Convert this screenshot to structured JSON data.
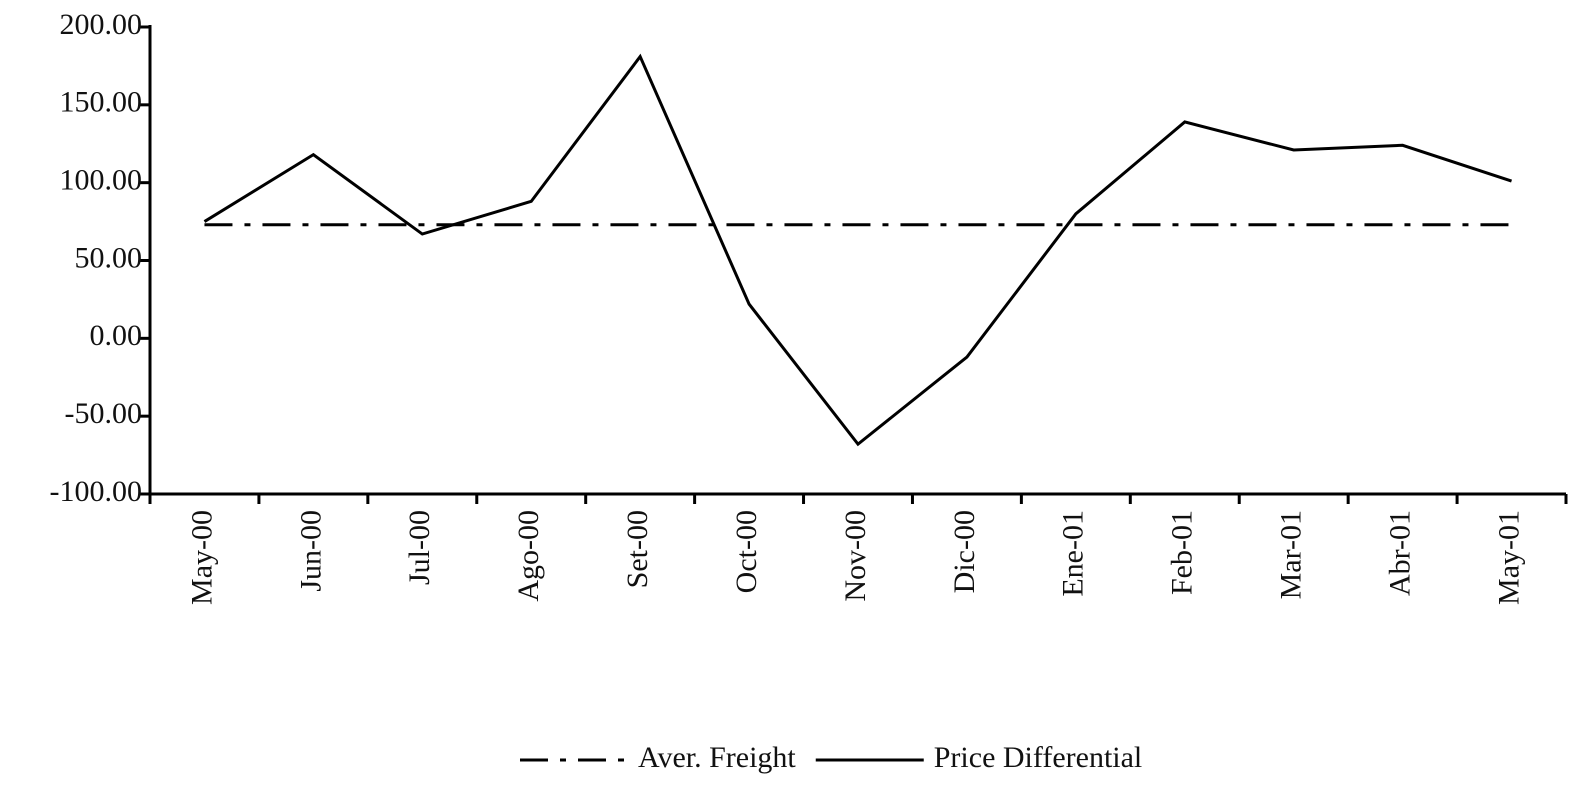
{
  "chart_data": {
    "type": "line",
    "categories": [
      "May-00",
      "Jun-00",
      "Jul-00",
      "Ago-00",
      "Set-00",
      "Oct-00",
      "Nov-00",
      "Dic-00",
      "Ene-01",
      "Feb-01",
      "Mar-01",
      "Abr-01",
      "May-01"
    ],
    "series": [
      {
        "name": "Aver. Freight",
        "color": "#000000",
        "dash": "dash-dot",
        "values": [
          73,
          73,
          73,
          73,
          73,
          73,
          73,
          73,
          73,
          73,
          73,
          73,
          73
        ]
      },
      {
        "name": "Price Differential",
        "color": "#000000",
        "dash": "solid",
        "values": [
          75,
          118,
          67,
          88,
          181,
          22,
          -68,
          -12,
          80,
          139,
          121,
          124,
          101
        ]
      }
    ],
    "ylim": [
      -100,
      200
    ],
    "yticks": [
      {
        "value": -100,
        "label": "-100.00"
      },
      {
        "value": -50,
        "label": "-50.00"
      },
      {
        "value": 0,
        "label": "0.00"
      },
      {
        "value": 50,
        "label": "50.00"
      },
      {
        "value": 100,
        "label": "100.00"
      },
      {
        "value": 150,
        "label": "150.00"
      },
      {
        "value": 200,
        "label": "200.00"
      }
    ],
    "legend": "bottom"
  }
}
